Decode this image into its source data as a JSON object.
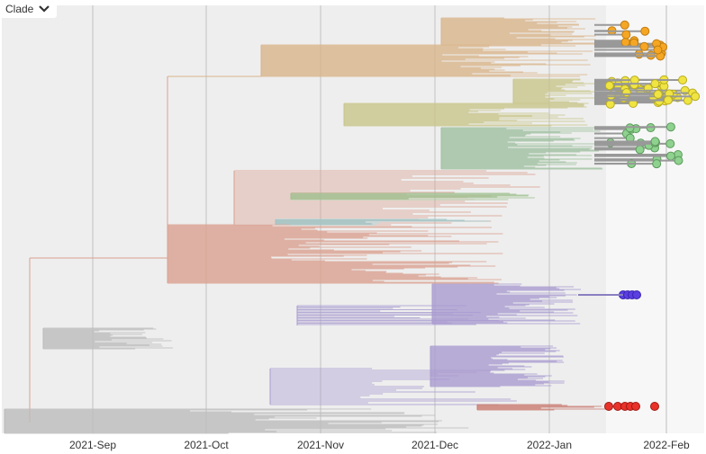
{
  "dropdown": {
    "label": "Clade"
  },
  "axis": {
    "ticks": [
      "2021-Sep",
      "2021-Oct",
      "2021-Nov",
      "2021-Dec",
      "2022-Jan",
      "2022-Feb"
    ]
  }
}
